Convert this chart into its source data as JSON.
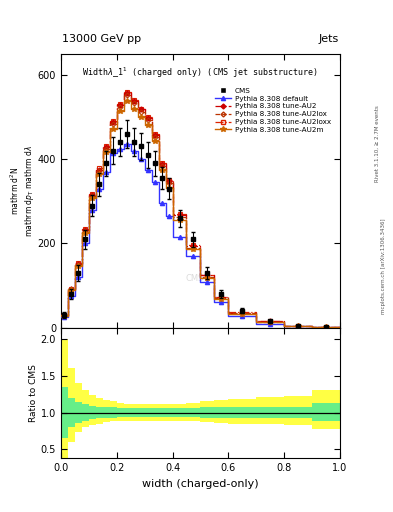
{
  "title_top": "13000 GeV pp",
  "title_right": "Jets",
  "plot_title": "Widthλ_1¹ (charged only) (CMS jet substructure)",
  "xlabel": "width (charged-only)",
  "right_label_top": "Rivet 3.1.10, ≥ 2.7M events",
  "right_label_bot": "mcplots.cern.ch [arXiv:1306.3436]",
  "watermark": "CMS",
  "x_bins": [
    0.0,
    0.025,
    0.05,
    0.075,
    0.1,
    0.125,
    0.15,
    0.175,
    0.2,
    0.225,
    0.25,
    0.275,
    0.3,
    0.325,
    0.35,
    0.375,
    0.4,
    0.45,
    0.5,
    0.55,
    0.6,
    0.7,
    0.8,
    0.9,
    1.0
  ],
  "cms_y": [
    30,
    80,
    130,
    210,
    290,
    340,
    390,
    420,
    440,
    460,
    440,
    430,
    410,
    390,
    355,
    330,
    260,
    210,
    130,
    80,
    40,
    15,
    5,
    2
  ],
  "cms_yerr": [
    8,
    12,
    18,
    22,
    25,
    28,
    30,
    32,
    33,
    34,
    33,
    32,
    31,
    29,
    27,
    25,
    20,
    18,
    14,
    10,
    6,
    4,
    2,
    1
  ],
  "pythia_default_y": [
    25,
    75,
    120,
    200,
    280,
    330,
    370,
    415,
    425,
    435,
    420,
    400,
    375,
    345,
    295,
    265,
    215,
    170,
    108,
    62,
    28,
    10,
    3,
    1
  ],
  "pythia_au2_y": [
    30,
    92,
    152,
    232,
    315,
    375,
    428,
    488,
    528,
    558,
    538,
    518,
    498,
    458,
    388,
    348,
    268,
    195,
    124,
    72,
    36,
    15,
    5,
    2
  ],
  "pythia_au2lox_y": [
    30,
    91,
    150,
    230,
    312,
    372,
    424,
    483,
    523,
    553,
    533,
    513,
    493,
    453,
    383,
    343,
    263,
    190,
    120,
    70,
    34,
    14,
    4,
    1
  ],
  "pythia_au2loxx_y": [
    30,
    93,
    154,
    234,
    318,
    378,
    430,
    490,
    530,
    560,
    540,
    520,
    500,
    460,
    390,
    350,
    270,
    197,
    126,
    74,
    37,
    16,
    5,
    2
  ],
  "pythia_au2m_y": [
    28,
    89,
    147,
    225,
    308,
    365,
    418,
    472,
    515,
    538,
    520,
    500,
    480,
    442,
    374,
    332,
    256,
    186,
    117,
    68,
    33,
    13,
    4,
    1
  ],
  "ratio_yellow_lo": [
    0.35,
    0.6,
    0.74,
    0.8,
    0.83,
    0.85,
    0.87,
    0.88,
    0.88,
    0.89,
    0.89,
    0.89,
    0.89,
    0.89,
    0.89,
    0.89,
    0.89,
    0.88,
    0.87,
    0.86,
    0.85,
    0.84,
    0.83,
    0.78
  ],
  "ratio_yellow_hi": [
    2.0,
    1.6,
    1.4,
    1.3,
    1.24,
    1.2,
    1.17,
    1.15,
    1.13,
    1.12,
    1.12,
    1.12,
    1.12,
    1.12,
    1.12,
    1.12,
    1.12,
    1.13,
    1.15,
    1.17,
    1.19,
    1.21,
    1.23,
    1.3
  ],
  "ratio_green_lo": [
    0.65,
    0.8,
    0.86,
    0.89,
    0.91,
    0.92,
    0.93,
    0.93,
    0.94,
    0.94,
    0.94,
    0.94,
    0.94,
    0.94,
    0.94,
    0.94,
    0.94,
    0.94,
    0.93,
    0.93,
    0.93,
    0.93,
    0.92,
    0.88
  ],
  "ratio_green_hi": [
    1.35,
    1.2,
    1.14,
    1.11,
    1.09,
    1.08,
    1.07,
    1.07,
    1.06,
    1.06,
    1.06,
    1.06,
    1.06,
    1.06,
    1.06,
    1.06,
    1.06,
    1.06,
    1.07,
    1.07,
    1.07,
    1.07,
    1.08,
    1.13
  ],
  "color_default": "#3333ff",
  "color_au2": "#cc0000",
  "color_au2lox": "#bb3300",
  "color_au2loxx": "#dd2200",
  "color_au2m": "#cc6600",
  "ylim_main": [
    0,
    650
  ],
  "yticks_main": [
    0,
    200,
    400,
    600
  ],
  "ylim_ratio": [
    0.38,
    2.15
  ],
  "yticks_ratio": [
    0.5,
    1.0,
    1.5,
    2.0
  ]
}
